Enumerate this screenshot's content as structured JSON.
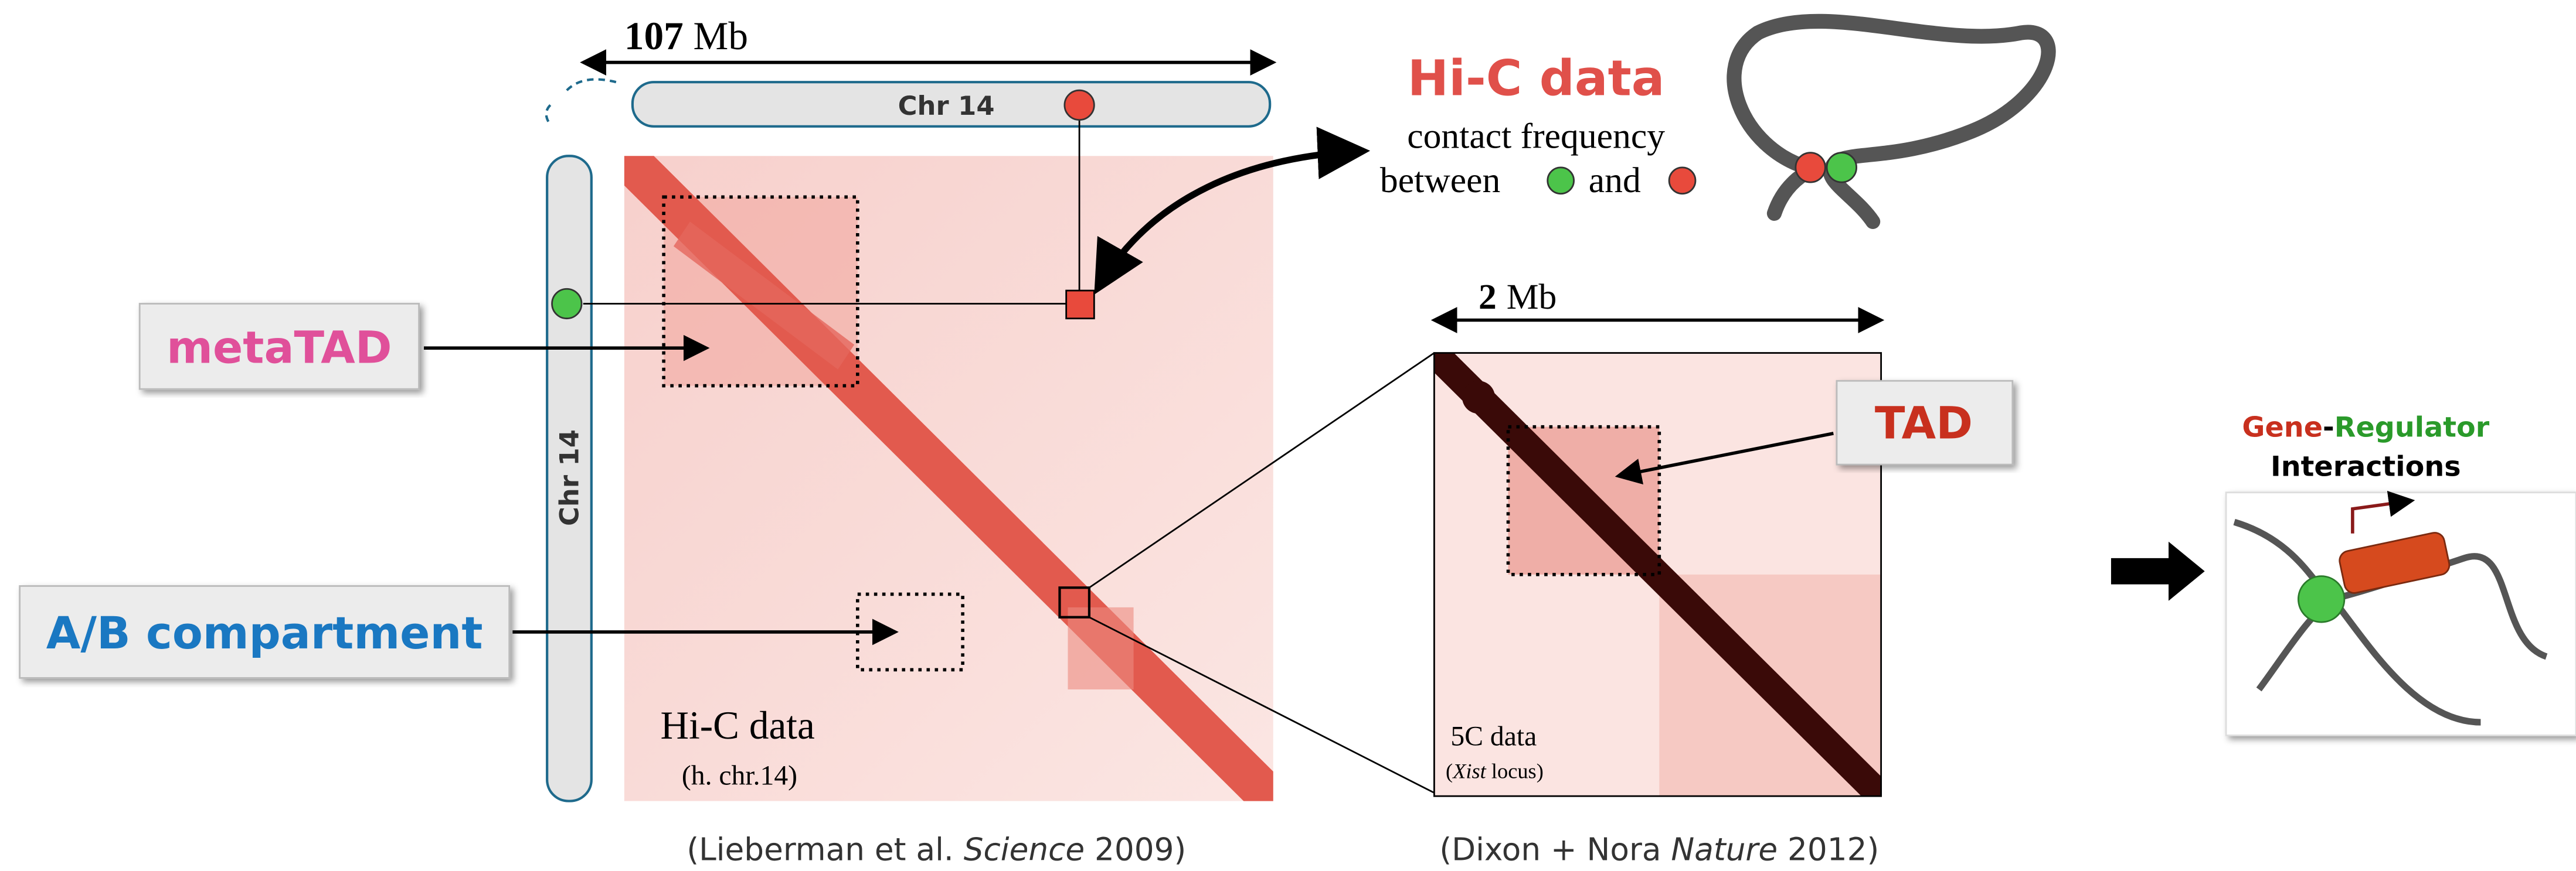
{
  "hic_panel": {
    "scale_value": "107",
    "scale_unit": "Mb",
    "chr_top": "Chr 14",
    "chr_left": "Chr 14",
    "label": "Hi-C data",
    "sublabel": "(h. chr.14)",
    "citation": {
      "pre": "(Lieberman et al. ",
      "journal": "Science",
      "post": " 2009)"
    }
  },
  "callouts": {
    "metatad": "metaTAD",
    "compartment": "A/B compartment",
    "tad": "TAD"
  },
  "hic_legend": {
    "title": "Hi-C data",
    "line1": "contact frequency",
    "between": "between",
    "and": "and"
  },
  "fivec_panel": {
    "scale_value": "2",
    "scale_unit": "Mb",
    "label": "5C data",
    "sublabel": {
      "pre": "(",
      "locus": "Xist",
      "post": " locus)"
    },
    "citation": {
      "pre": "(Dixon + Nora ",
      "journal": "Nature",
      "post": " 2012)"
    }
  },
  "gene_regulator": {
    "gene": "Gene",
    "dash": "-",
    "regulator": "Regulator",
    "interactions": "Interactions"
  }
}
